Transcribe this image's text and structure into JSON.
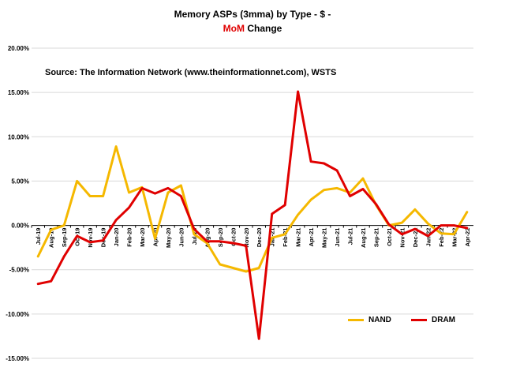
{
  "title": {
    "line1": "Memory ASPs (3mma) by Type - $ -",
    "line2_highlight": "MoM",
    "line2_rest": " Change"
  },
  "source_note": "Source: The Information Network (www.theinformationnet.com), WSTS",
  "colors": {
    "nand": "#f5b800",
    "dram": "#e00000",
    "axis": "#000000",
    "grid": "#d9d9d9"
  },
  "chart_data": {
    "type": "line",
    "categories": [
      "Jul-19",
      "Aug-19",
      "Sep-19",
      "Oct-19",
      "Nov-19",
      "Dec-19",
      "Jan-20",
      "Feb-20",
      "Mar-20",
      "Apr-20",
      "May-20",
      "Jun-20",
      "Jul-20",
      "Aug-20",
      "Sep-20",
      "Oct-20",
      "Nov-20",
      "Dec-20",
      "Jan-21",
      "Feb-21",
      "Mar-21",
      "Apr-21",
      "May-21",
      "Jun-21",
      "Jul-21",
      "Aug-21",
      "Sep-21",
      "Oct-21",
      "Nov-21",
      "Dec-21",
      "Jan-22",
      "Feb-22",
      "Mar-22",
      "Apr-22"
    ],
    "series": [
      {
        "name": "NAND",
        "color_key": "nand",
        "values": [
          -3.5,
          -0.5,
          0.0,
          5.0,
          3.3,
          3.3,
          8.9,
          3.7,
          4.3,
          -1.5,
          3.7,
          4.5,
          -1.0,
          -2.0,
          -4.4,
          -4.8,
          -5.2,
          -4.8,
          -1.4,
          -1.0,
          1.2,
          2.9,
          4.0,
          4.2,
          3.7,
          5.3,
          2.3,
          0.0,
          0.3,
          1.8,
          0.2,
          -0.9,
          -1.0,
          1.5
        ]
      },
      {
        "name": "DRAM",
        "color_key": "dram",
        "values": [
          -6.6,
          -6.3,
          -3.5,
          -1.2,
          -1.9,
          -1.7,
          0.6,
          2.0,
          4.2,
          3.6,
          4.2,
          3.3,
          -0.4,
          -1.8,
          -1.8,
          -2.0,
          -2.3,
          -12.8,
          1.3,
          2.3,
          15.1,
          7.2,
          7.0,
          6.2,
          3.3,
          4.1,
          2.4,
          0.1,
          -1.0,
          -0.4,
          -1.2,
          0.0,
          0.0,
          -0.3
        ]
      }
    ],
    "ylim": [
      -15,
      20
    ],
    "ytick_step": 5,
    "yticks": [
      "-15.00%",
      "-10.00%",
      "-5.00%",
      "0.00%",
      "5.00%",
      "10.00%",
      "15.00%",
      "20.00%"
    ],
    "grid": true,
    "legend": {
      "position": "bottom-right",
      "entries": [
        {
          "label": "NAND",
          "color_key": "nand"
        },
        {
          "label": "DRAM",
          "color_key": "dram"
        }
      ]
    }
  }
}
